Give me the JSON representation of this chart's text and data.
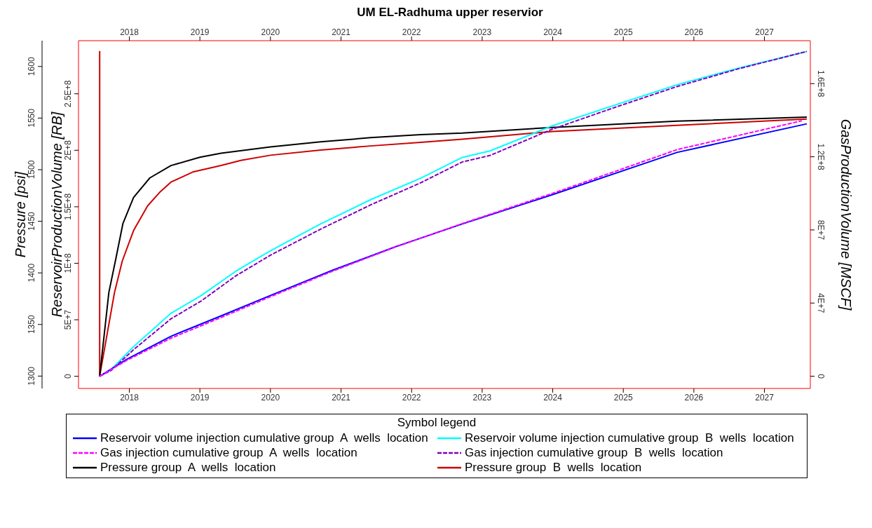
{
  "chart_data": {
    "type": "line",
    "title": "UM EL-Radhuma upper reservior",
    "xlim": [
      2017.28,
      2027.65
    ],
    "xticks": [
      2018,
      2019,
      2020,
      2021,
      2022,
      2023,
      2024,
      2025,
      2026,
      2027
    ],
    "x2lim": [
      2017.28,
      2027.65
    ],
    "x2ticks": [
      2018,
      2019,
      2020,
      2021,
      2022,
      2023,
      2024,
      2025,
      2026,
      2027
    ],
    "ylabel": "Pressure [psi]",
    "ylim": [
      1288,
      1625
    ],
    "yticks": [
      1300,
      1350,
      1400,
      1450,
      1500,
      1550,
      1600
    ],
    "y2label": "ReservoirProductionVolume [RB]",
    "y2lim": [
      -10800000,
      297000000
    ],
    "y2ticks": [
      {
        "value": 0,
        "label": "0"
      },
      {
        "value": 50000000,
        "label": "5E+7"
      },
      {
        "value": 100000000,
        "label": "1E+8"
      },
      {
        "value": 150000000,
        "label": "1.5E+8"
      },
      {
        "value": 200000000,
        "label": "2E+8"
      },
      {
        "value": 250000000,
        "label": "2.5E+8"
      }
    ],
    "y3label": "GasProductionVolume [MSCF]",
    "y3lim": [
      -6700000,
      183500000
    ],
    "y3ticks": [
      {
        "value": 0,
        "label": "0"
      },
      {
        "value": 40000000,
        "label": "4E+7"
      },
      {
        "value": 80000000,
        "label": "8E+7"
      },
      {
        "value": 120000000,
        "label": "1.2E+8"
      },
      {
        "value": 160000000,
        "label": "1.6E+8"
      }
    ],
    "legend": "bottom",
    "legend_title": "Symbol legend",
    "marker": "none",
    "series": [
      {
        "name": "Reservoir volume injection cumulative group  A  wells  location",
        "color": "#0000ff",
        "axis": "y2",
        "line_style": "solid",
        "x": [
          2017.58,
          2017.96,
          2018.59,
          2019.3,
          2020.0,
          2020.89,
          2021.77,
          2022.72,
          2024.0,
          2025.76,
          2027.6
        ],
        "values": [
          0,
          14900000,
          35400000,
          53400000,
          71500000,
          94100000,
          114600000,
          134800000,
          160800000,
          198100000,
          223400000
        ]
      },
      {
        "name": "Reservoir volume injection cumulative group  B  wells  location",
        "color": "#00ffff",
        "axis": "y2",
        "line_style": "solid",
        "x": [
          2017.58,
          2017.74,
          2018.06,
          2018.59,
          2019.02,
          2019.51,
          2020.0,
          2020.71,
          2021.42,
          2022.13,
          2022.72,
          2023.11,
          2024.0,
          2024.88,
          2025.76,
          2026.64,
          2027.6
        ],
        "values": [
          0,
          5900000,
          26200000,
          55700000,
          71500000,
          93000000,
          111000000,
          134800000,
          156300000,
          175300000,
          193700000,
          199400000,
          221800000,
          240000000,
          258000000,
          272800000,
          287400000
        ]
      },
      {
        "name": "Gas injection cumulative group  A  wells  location",
        "color": "#ff00ff",
        "axis": "y3",
        "line_style": "dashed",
        "x": [
          2017.58,
          2017.96,
          2018.59,
          2019.3,
          2020.0,
          2020.89,
          2021.77,
          2022.72,
          2024.0,
          2025.76,
          2027.53
        ],
        "values": [
          0,
          8600000,
          20800000,
          32100000,
          43500000,
          57600000,
          70600000,
          83500000,
          100000000,
          123900000,
          139700000
        ]
      },
      {
        "name": "Gas injection cumulative group  B  wells  location",
        "color": "#8000c0",
        "axis": "y3",
        "line_style": "dashed",
        "x": [
          2017.58,
          2017.74,
          2018.06,
          2018.59,
          2019.02,
          2019.51,
          2020.0,
          2020.71,
          2021.42,
          2022.13,
          2022.72,
          2023.11,
          2024.0,
          2024.88,
          2025.76,
          2026.64,
          2027.6
        ],
        "values": [
          0,
          3100000,
          14500000,
          31400000,
          41200000,
          54900000,
          66200000,
          80400000,
          93700000,
          105800000,
          117200000,
          120700000,
          135200000,
          147000000,
          158400000,
          168200000,
          177600000
        ]
      },
      {
        "name": "Pressure group  A  wells  location",
        "color": "#000000",
        "axis": "y",
        "line_style": "solid",
        "x": [
          2017.58,
          2017.71,
          2017.81,
          2017.91,
          2018.06,
          2018.29,
          2018.59,
          2019.0,
          2019.3,
          2020.0,
          2020.71,
          2021.42,
          2022.13,
          2022.72,
          2024.0,
          2025.76,
          2027.6
        ],
        "values": [
          1300,
          1381,
          1414,
          1448,
          1473,
          1492,
          1504,
          1512,
          1516,
          1522,
          1527,
          1531,
          1534,
          1535.5,
          1541,
          1547,
          1551
        ]
      },
      {
        "name": "Pressure group  B  wells  location",
        "color": "#cc0000",
        "axis": "y",
        "line_style": "solid",
        "x": [
          2017.58,
          2017.58,
          2017.79,
          2017.9,
          2018.06,
          2018.26,
          2018.43,
          2018.59,
          2018.91,
          2019.3,
          2019.58,
          2020.0,
          2020.71,
          2021.42,
          2022.13,
          2022.72,
          2024.0,
          2025.76,
          2027.6
        ],
        "values": [
          1615,
          1300,
          1381,
          1411.5,
          1441,
          1465,
          1478,
          1488,
          1498,
          1504,
          1509,
          1514,
          1519,
          1523,
          1526.5,
          1529.5,
          1537,
          1543,
          1549
        ]
      }
    ]
  }
}
